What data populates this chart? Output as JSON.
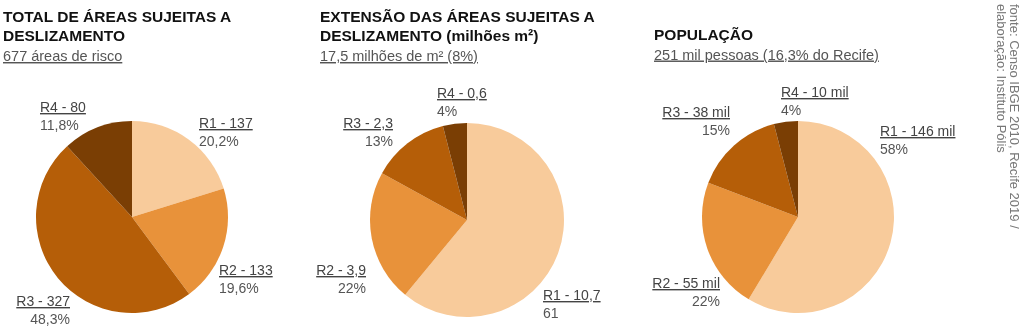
{
  "chart_data": [
    {
      "type": "pie",
      "title": "TOTAL DE ÁREAS SUJEITAS A DESLIZAMENTO",
      "subtitle": "677 áreas de risco",
      "categories": [
        "R1 - 137",
        "R2 - 133",
        "R3 - 327",
        "R4 - 80"
      ],
      "values": [
        20.2,
        19.6,
        48.3,
        11.8
      ],
      "value_labels": [
        "20,2%",
        "19,6%",
        "48,3%",
        "11,8%"
      ],
      "colors": [
        "#f8cb9b",
        "#e8923a",
        "#b55e08",
        "#7a3e04"
      ]
    },
    {
      "type": "pie",
      "title": "EXTENSÃO DAS ÁREAS SUJEITAS A DESLIZAMENTO (milhões m²)",
      "subtitle": "17,5 milhões de m² (8%)",
      "categories": [
        "R1 - 10,7",
        "R2 - 3,9",
        "R3 - 2,3",
        "R4 - 0,6"
      ],
      "values": [
        61,
        22,
        13,
        4
      ],
      "value_labels": [
        "61",
        "22%",
        "13%",
        "4%"
      ],
      "colors": [
        "#f8cb9b",
        "#e8923a",
        "#b55e08",
        "#7a3e04"
      ]
    },
    {
      "type": "pie",
      "title": "POPULAÇÃO",
      "subtitle": "251 mil pessoas (16,3% do Recife)",
      "categories": [
        "R1 - 146 mil",
        "R2 - 55 mil",
        "R3 - 38 mil",
        "R4 - 10 mil"
      ],
      "values": [
        58,
        22,
        15,
        4
      ],
      "value_labels": [
        "58%",
        "22%",
        "15%",
        "4%"
      ],
      "colors": [
        "#f8cb9b",
        "#e8923a",
        "#b55e08",
        "#7a3e04"
      ],
      "annotations": [
        "fonte: Censo IBGE 2010, Recife 2019 /",
        "elaboração: Instituto Pólis"
      ]
    }
  ]
}
